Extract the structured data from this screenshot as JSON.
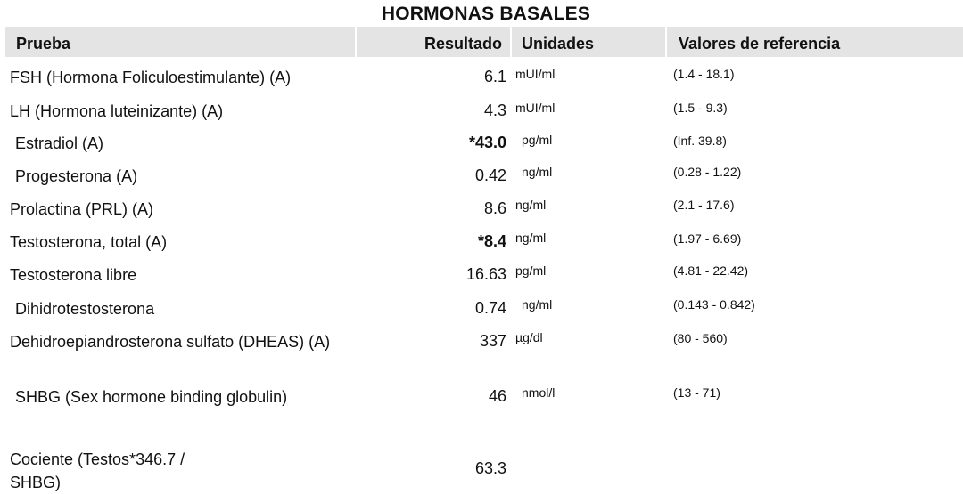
{
  "title": "HORMONAS BASALES",
  "columns": {
    "test": "Prueba",
    "result": "Resultado",
    "units": "Unidades",
    "reference": "Valores de referencia"
  },
  "rows": [
    {
      "test": "FSH (Hormona Foliculoestimulante) (A)",
      "result": "6.1",
      "units": "mUI/ml",
      "reference": "(1.4 - 18.1)",
      "flagged": false
    },
    {
      "test": "LH (Hormona luteinizante) (A)",
      "result": "4.3",
      "units": "mUI/ml",
      "reference": "(1.5 - 9.3)",
      "flagged": false
    },
    {
      "test": "Estradiol (A)",
      "result": "*43.0",
      "units": "pg/ml",
      "reference": "(Inf. 39.8)",
      "flagged": true
    },
    {
      "test": "Progesterona (A)",
      "result": "0.42",
      "units": "ng/ml",
      "reference": "(0.28 - 1.22)",
      "flagged": false
    },
    {
      "test": "Prolactina (PRL) (A)",
      "result": "8.6",
      "units": "ng/ml",
      "reference": "(2.1 - 17.6)",
      "flagged": false
    },
    {
      "test": "Testosterona, total (A)",
      "result": "*8.4",
      "units": "ng/ml",
      "reference": "(1.97 - 6.69)",
      "flagged": true
    },
    {
      "test": "Testosterona libre",
      "result": "16.63",
      "units": "pg/ml",
      "reference": "(4.81 - 22.42)",
      "flagged": false
    },
    {
      "test": "Dihidrotestosterona",
      "result": "0.74",
      "units": "ng/ml",
      "reference": "(0.143 - 0.842)",
      "flagged": false
    },
    {
      "test": "Dehidroepiandrosterona sulfato (DHEAS) (A)",
      "result": "337",
      "units": "µg/dl",
      "reference": "(80 - 560)",
      "flagged": false
    },
    {
      "test": "SHBG (Sex hormone binding globulin)",
      "result": "46",
      "units": "nmol/l",
      "reference": "(13 - 71)",
      "flagged": false
    },
    {
      "test": "Cociente (Testos*346.7 / SHBG)",
      "result": "63.3",
      "units": "",
      "reference": "",
      "flagged": false
    }
  ]
}
